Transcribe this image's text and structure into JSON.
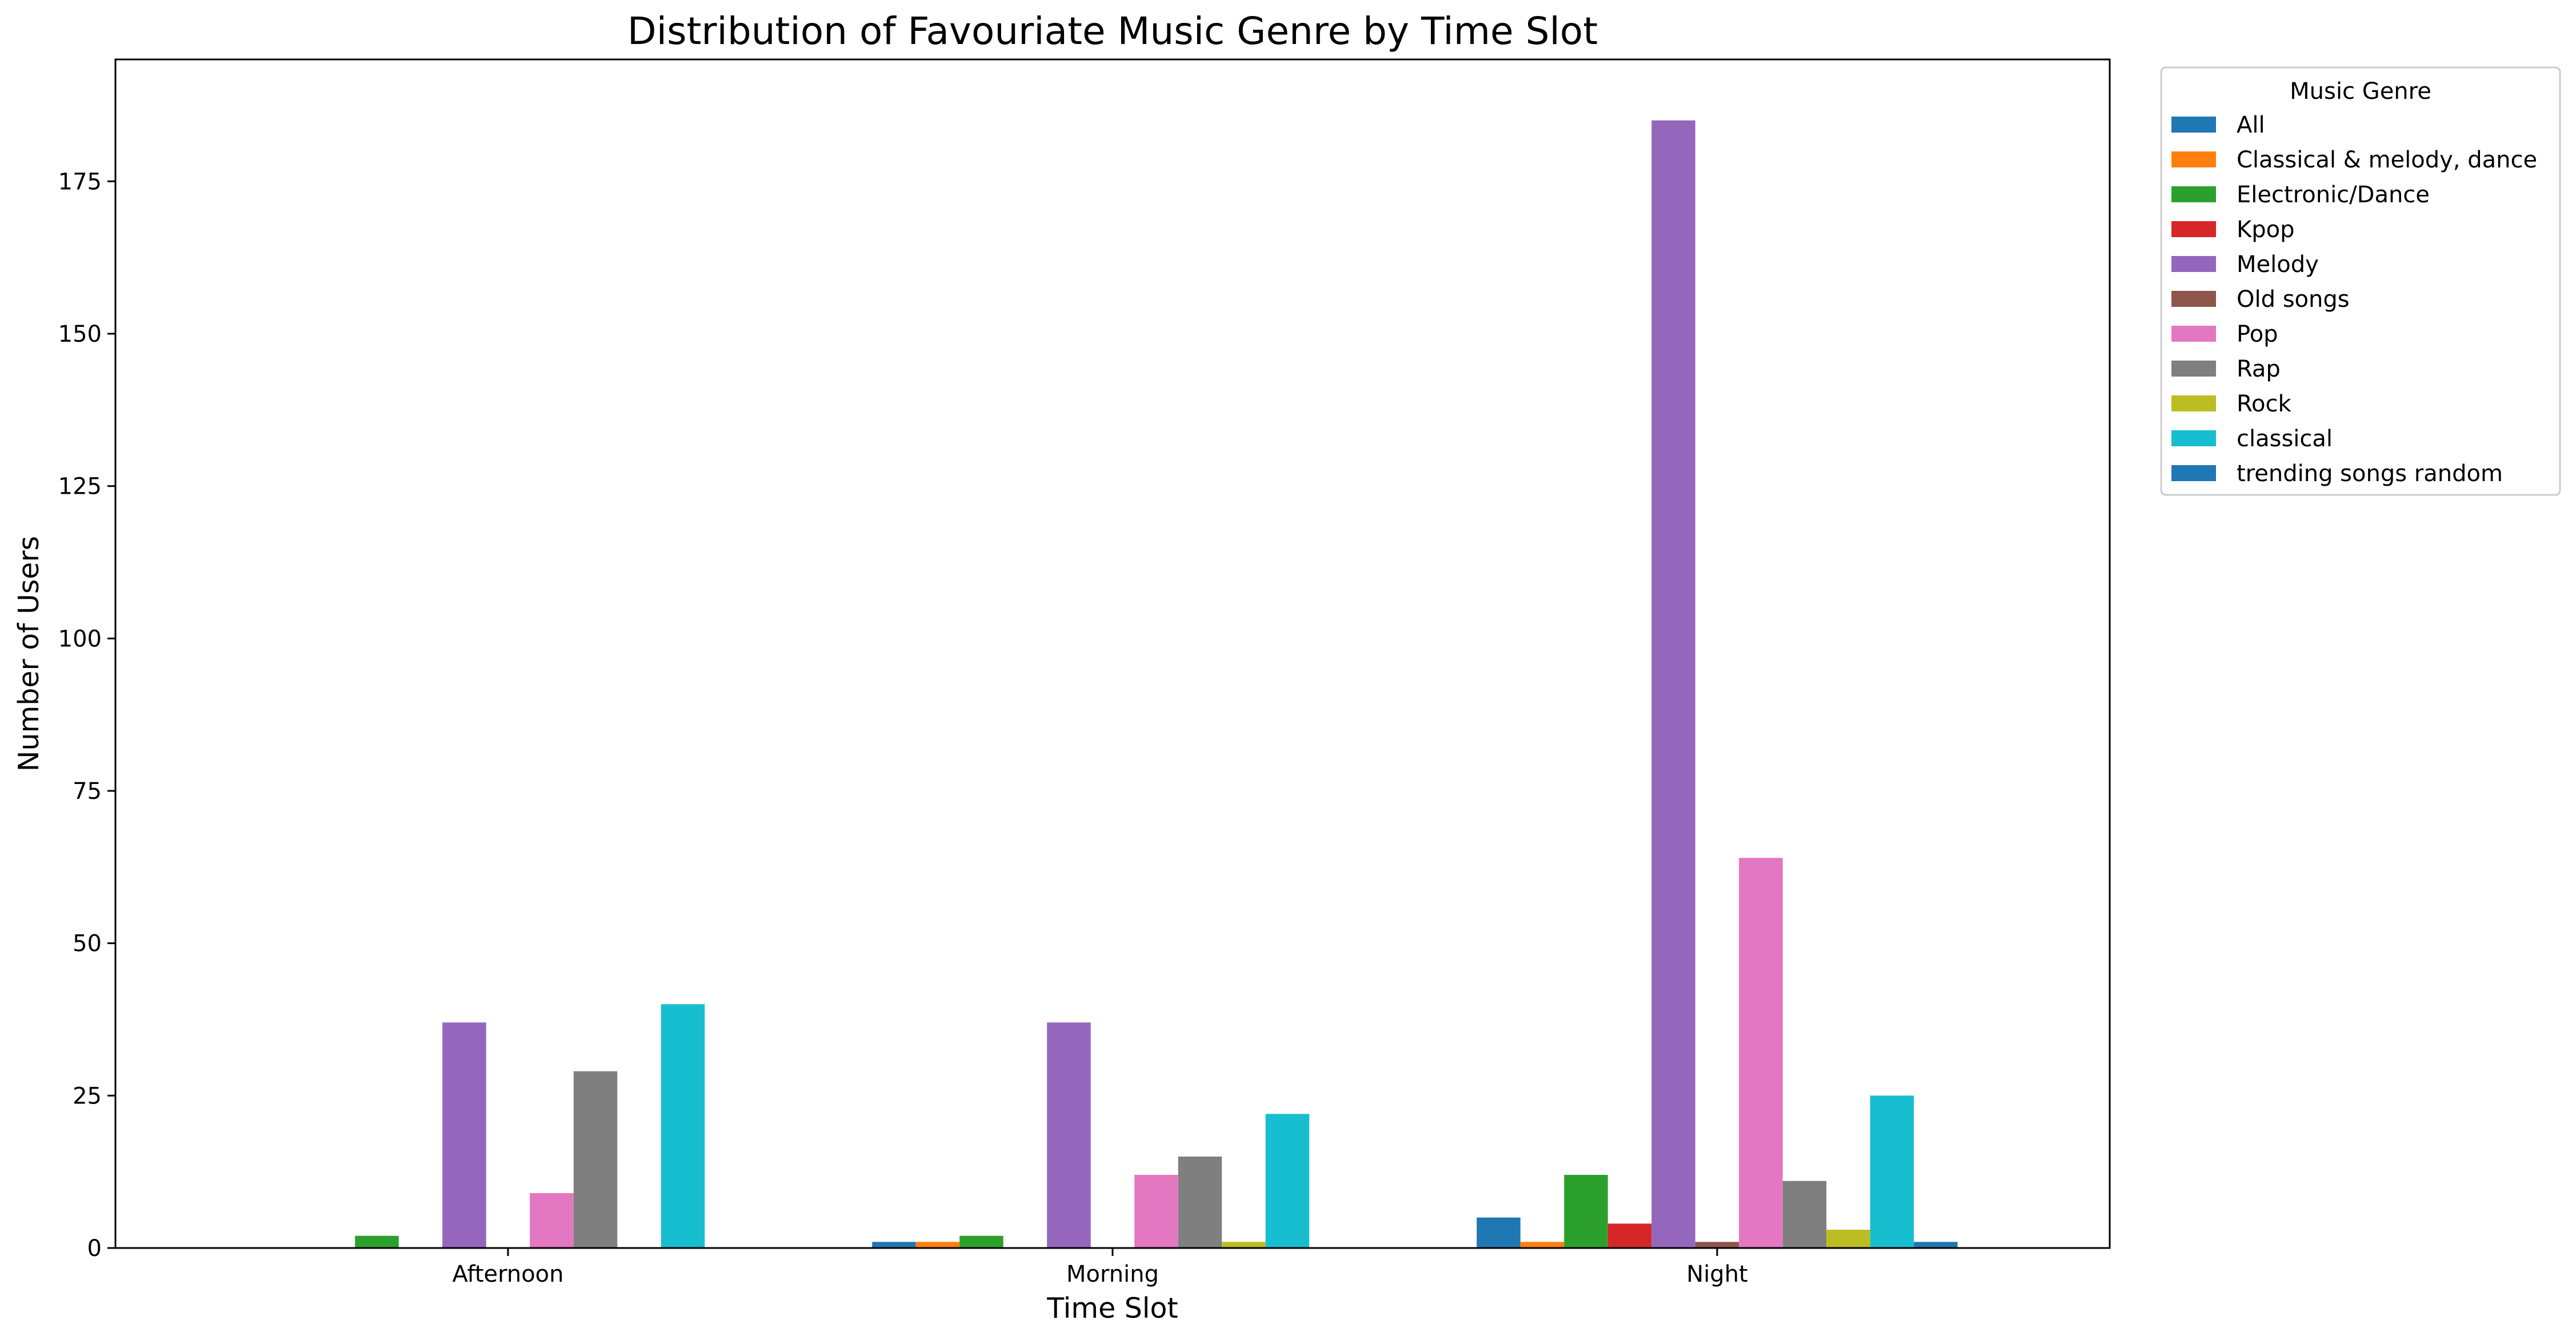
{
  "chart_data": {
    "type": "bar",
    "title": "Distribution of Favouriate Music Genre by Time Slot",
    "xlabel": "Time Slot",
    "ylabel": "Number of Users",
    "categories": [
      "Afternoon",
      "Morning",
      "Night"
    ],
    "ylim": [
      0,
      195
    ],
    "yticks": [
      0,
      25,
      50,
      75,
      100,
      125,
      150,
      175
    ],
    "grid": false,
    "legend": {
      "title": "Music Genre",
      "placement": "outside-top-right"
    },
    "series": [
      {
        "name": "All",
        "color": "#1f77b4",
        "values": [
          0,
          1,
          5
        ]
      },
      {
        "name": "Classical & melody, dance",
        "color": "#ff7f0e",
        "values": [
          0,
          1,
          1
        ]
      },
      {
        "name": "Electronic/Dance",
        "color": "#2ca02c",
        "values": [
          2,
          2,
          12
        ]
      },
      {
        "name": "Kpop",
        "color": "#d62728",
        "values": [
          0,
          0,
          4
        ]
      },
      {
        "name": "Melody",
        "color": "#9467bd",
        "values": [
          37,
          37,
          185
        ]
      },
      {
        "name": "Old songs",
        "color": "#8c564b",
        "values": [
          0,
          0,
          1
        ]
      },
      {
        "name": "Pop",
        "color": "#e377c2",
        "values": [
          9,
          12,
          64
        ]
      },
      {
        "name": "Rap",
        "color": "#7f7f7f",
        "values": [
          29,
          15,
          11
        ]
      },
      {
        "name": "Rock",
        "color": "#bcbd22",
        "values": [
          0,
          1,
          3
        ]
      },
      {
        "name": "classical",
        "color": "#17becf",
        "values": [
          40,
          22,
          25
        ]
      },
      {
        "name": "trending songs random",
        "color": "#1f77b4",
        "values": [
          0,
          0,
          1
        ]
      }
    ]
  }
}
